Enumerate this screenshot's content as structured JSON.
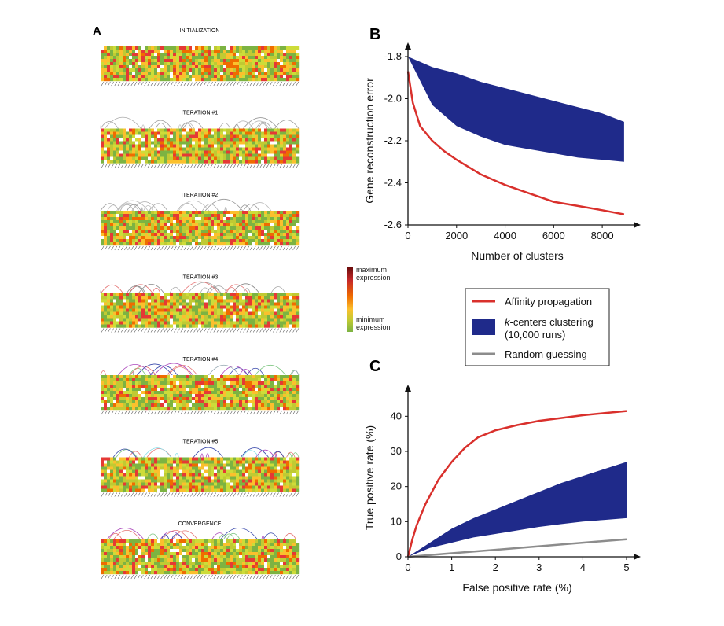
{
  "panel_a": {
    "letter": "A",
    "stages": [
      {
        "title": "INITIALIZATION"
      },
      {
        "title": "ITERATION #1"
      },
      {
        "title": "ITERATION #2"
      },
      {
        "title": "ITERATION #3"
      },
      {
        "title": "ITERATION #4"
      },
      {
        "title": "ITERATION #5"
      },
      {
        "title": "CONVERGENCE"
      }
    ],
    "colorbar": {
      "max_label_1": "maximum",
      "max_label_2": "expression",
      "min_label_1": "minimum",
      "min_label_2": "expression",
      "colors": [
        "#7a0f0f",
        "#c62828",
        "#ef6c00",
        "#fbc02d",
        "#c0ca33",
        "#7cb342"
      ]
    }
  },
  "legend": {
    "items": [
      {
        "label": "Affinity propagation",
        "color": "#d9302c",
        "kind": "line"
      },
      {
        "label_prefix": "k",
        "label_rest": "-centers clustering",
        "label_line2": "(10,000 runs)",
        "color": "#1f2a8a",
        "kind": "band"
      },
      {
        "label": "Random guessing",
        "color": "#8c8c8c",
        "kind": "line"
      }
    ]
  },
  "chart_data": [
    {
      "panel": "B",
      "type": "line",
      "xlabel": "Number of clusters",
      "ylabel": "Gene reconstruction error",
      "xlim": [
        0,
        9000
      ],
      "ylim": [
        -2.6,
        -1.8
      ],
      "xticks": [
        0,
        2000,
        4000,
        6000,
        8000
      ],
      "yticks": [
        -1.8,
        -2.0,
        -2.2,
        -2.4,
        -2.6
      ],
      "ytick_labels": [
        "-1.8",
        "-2.0",
        "-2.2",
        "-2.4",
        "-2.6"
      ],
      "series": [
        {
          "name": "Affinity propagation",
          "kind": "line",
          "color": "#d9302c",
          "x": [
            0,
            200,
            500,
            1000,
            1500,
            2000,
            3000,
            4000,
            5000,
            6000,
            7000,
            8000,
            8900
          ],
          "y": [
            -1.87,
            -2.02,
            -2.13,
            -2.2,
            -2.25,
            -2.29,
            -2.36,
            -2.41,
            -2.45,
            -2.49,
            -2.51,
            -2.53,
            -2.55
          ]
        },
        {
          "name": "k-centers clustering (10,000 runs)",
          "kind": "band",
          "color": "#1f2a8a",
          "x": [
            0,
            1000,
            2000,
            3000,
            4000,
            5000,
            6000,
            7000,
            8000,
            8900
          ],
          "upper": [
            -1.8,
            -1.85,
            -1.88,
            -1.92,
            -1.95,
            -1.98,
            -2.01,
            -2.04,
            -2.07,
            -2.11
          ],
          "lower": [
            -1.8,
            -2.03,
            -2.13,
            -2.18,
            -2.22,
            -2.24,
            -2.26,
            -2.28,
            -2.29,
            -2.3
          ]
        }
      ]
    },
    {
      "panel": "C",
      "type": "line",
      "xlabel": "False positive rate (%)",
      "ylabel": "True positive rate (%)",
      "xlim": [
        0,
        5
      ],
      "ylim": [
        0,
        45
      ],
      "xticks": [
        0,
        1,
        2,
        3,
        4,
        5
      ],
      "yticks": [
        0,
        10,
        20,
        30,
        40
      ],
      "series": [
        {
          "name": "Affinity propagation",
          "kind": "line",
          "color": "#d9302c",
          "x": [
            0,
            0.1,
            0.2,
            0.4,
            0.7,
            1.0,
            1.3,
            1.6,
            2.0,
            2.5,
            3.0,
            3.5,
            4.0,
            4.5,
            5.0
          ],
          "y": [
            0,
            5,
            9,
            15,
            22,
            27,
            31,
            34,
            36,
            37.5,
            38.7,
            39.5,
            40.3,
            40.9,
            41.5
          ]
        },
        {
          "name": "k-centers clustering (10,000 runs)",
          "kind": "band",
          "color": "#1f2a8a",
          "x": [
            0,
            0.5,
            1.0,
            1.5,
            2.0,
            2.5,
            3.0,
            3.5,
            4.0,
            4.5,
            5.0
          ],
          "upper": [
            0,
            4,
            8,
            11,
            13.5,
            16,
            18.5,
            21,
            23,
            25,
            27
          ],
          "lower": [
            0,
            2.5,
            4,
            5.5,
            6.5,
            7.5,
            8.5,
            9.3,
            10,
            10.5,
            11
          ]
        },
        {
          "name": "Random guessing",
          "kind": "line",
          "color": "#8c8c8c",
          "x": [
            0,
            1,
            2,
            3,
            4,
            5
          ],
          "y": [
            0,
            1,
            2,
            3,
            4,
            5
          ]
        }
      ]
    }
  ]
}
